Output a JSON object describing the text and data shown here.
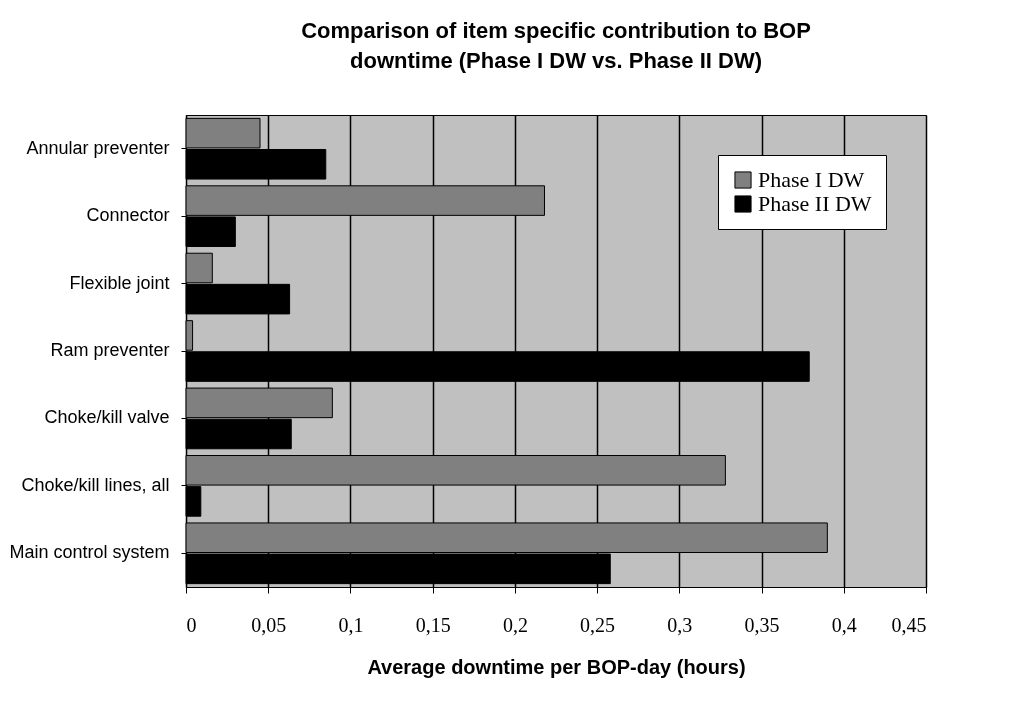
{
  "chart_data": {
    "type": "bar",
    "orientation": "horizontal",
    "title": "Comparison of item specific contribution to BOP downtime (Phase I DW vs. Phase II DW)",
    "xlabel": "Average downtime per BOP-day (hours)",
    "categories": [
      "Annular preventer",
      "Connector",
      "Flexible joint",
      "Ram preventer",
      "Choke/kill valve",
      "Choke/kill lines, all",
      "Main control system"
    ],
    "series": [
      {
        "name": "Phase I DW",
        "color": "#808080",
        "values": [
          0.045,
          0.218,
          0.016,
          0.004,
          0.089,
          0.328,
          0.39
        ]
      },
      {
        "name": "Phase II DW",
        "color": "#000000",
        "values": [
          0.085,
          0.03,
          0.063,
          0.379,
          0.064,
          0.009,
          0.258
        ]
      }
    ],
    "xlim": [
      0,
      0.45
    ],
    "xticks": [
      0,
      {
        "value": 0.05,
        "label": "0,05"
      },
      {
        "value": 0.1,
        "label": "0,1"
      },
      {
        "value": 0.15,
        "label": "0,15"
      },
      {
        "value": 0.2,
        "label": "0,2"
      },
      {
        "value": 0.25,
        "label": "0,25"
      },
      {
        "value": 0.3,
        "label": "0,3"
      },
      {
        "value": 0.35,
        "label": "0,35"
      },
      {
        "value": 0.4,
        "label": "0,4"
      },
      {
        "value": 0.45,
        "label": "0,45"
      }
    ],
    "grid": "x",
    "legend": "top right"
  }
}
